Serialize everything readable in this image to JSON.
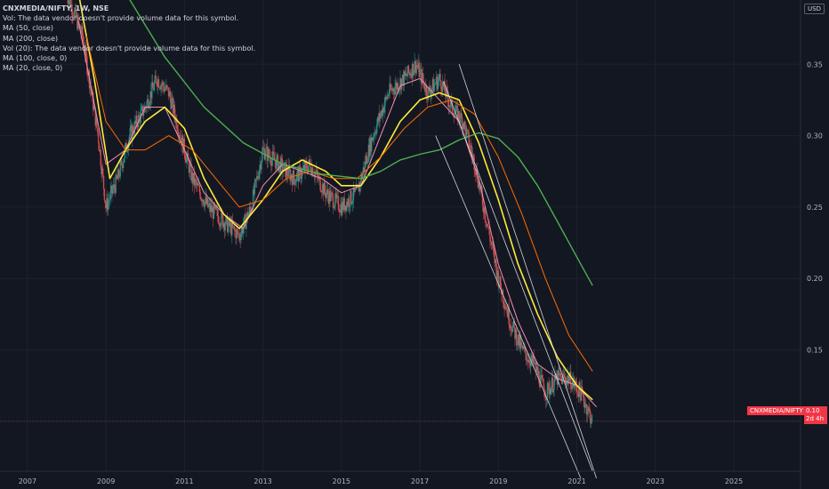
{
  "legend": {
    "symbol": "CNXMEDIA/NIFTY, 1W, NSE",
    "vol_note": "Vol: The data vendor doesn't provide volume data for this symbol.",
    "ma50": "MA (50, close)",
    "ma200": "MA (200, close)",
    "vol20_note": "Vol (20): The data vendor doesn't provide volume data for this symbol.",
    "ma100": "MA (100, close, 0)",
    "ma20": "MA (20, close, 0)"
  },
  "currency_badge": "USD",
  "price_tag": {
    "label": "CNXMEDIA/NIFTY",
    "value": "0.10",
    "countdown": "2d 4h"
  },
  "colors": {
    "background": "#131722",
    "candle_up": "#26a69a",
    "candle_down": "#ef5350",
    "ma20": "#f48fb1",
    "ma50": "#ffeb3b",
    "ma100": "#ff6d00",
    "ma200": "#4caf50",
    "channel": "#d1d4dc",
    "price_tag": "#f23645"
  },
  "chart_data": {
    "type": "candlestick",
    "timeframe": "1W",
    "x_ticks": [
      "2007",
      "2009",
      "2011",
      "2013",
      "2015",
      "2017",
      "2019",
      "2021",
      "2023",
      "2025"
    ],
    "y_ticks": [
      "0.10",
      "0.15",
      "0.20",
      "0.25",
      "0.30",
      "0.35"
    ],
    "ylim": [
      0.065,
      0.395
    ],
    "xlim": [
      2006.3,
      2026.7
    ],
    "price_path": [
      [
        2008.0,
        0.4
      ],
      [
        2008.4,
        0.37
      ],
      [
        2008.8,
        0.3
      ],
      [
        2009.0,
        0.25
      ],
      [
        2009.3,
        0.27
      ],
      [
        2009.6,
        0.3
      ],
      [
        2010.0,
        0.32
      ],
      [
        2010.3,
        0.34
      ],
      [
        2010.6,
        0.33
      ],
      [
        2010.9,
        0.3
      ],
      [
        2011.2,
        0.27
      ],
      [
        2011.6,
        0.25
      ],
      [
        2012.0,
        0.24
      ],
      [
        2012.4,
        0.23
      ],
      [
        2012.7,
        0.25
      ],
      [
        2013.0,
        0.29
      ],
      [
        2013.4,
        0.28
      ],
      [
        2013.8,
        0.27
      ],
      [
        2014.2,
        0.28
      ],
      [
        2014.6,
        0.26
      ],
      [
        2015.0,
        0.25
      ],
      [
        2015.4,
        0.26
      ],
      [
        2015.8,
        0.3
      ],
      [
        2016.2,
        0.33
      ],
      [
        2016.6,
        0.34
      ],
      [
        2016.9,
        0.35
      ],
      [
        2017.2,
        0.33
      ],
      [
        2017.5,
        0.34
      ],
      [
        2017.8,
        0.32
      ],
      [
        2018.1,
        0.31
      ],
      [
        2018.4,
        0.28
      ],
      [
        2018.7,
        0.24
      ],
      [
        2019.0,
        0.2
      ],
      [
        2019.3,
        0.17
      ],
      [
        2019.6,
        0.15
      ],
      [
        2019.9,
        0.14
      ],
      [
        2020.2,
        0.12
      ],
      [
        2020.5,
        0.13
      ],
      [
        2020.8,
        0.13
      ],
      [
        2021.1,
        0.12
      ],
      [
        2021.4,
        0.1
      ]
    ],
    "series": [
      {
        "name": "MA (20, close, 0)",
        "points": [
          [
            2008.3,
            0.38
          ],
          [
            2009.0,
            0.28
          ],
          [
            2009.5,
            0.29
          ],
          [
            2010.0,
            0.32
          ],
          [
            2010.5,
            0.32
          ],
          [
            2011.0,
            0.29
          ],
          [
            2011.5,
            0.26
          ],
          [
            2012.0,
            0.245
          ],
          [
            2012.5,
            0.235
          ],
          [
            2013.0,
            0.265
          ],
          [
            2013.5,
            0.28
          ],
          [
            2014.0,
            0.275
          ],
          [
            2014.5,
            0.27
          ],
          [
            2015.0,
            0.26
          ],
          [
            2015.5,
            0.265
          ],
          [
            2016.0,
            0.3
          ],
          [
            2016.5,
            0.335
          ],
          [
            2017.0,
            0.34
          ],
          [
            2017.5,
            0.325
          ],
          [
            2018.0,
            0.31
          ],
          [
            2018.5,
            0.27
          ],
          [
            2019.0,
            0.21
          ],
          [
            2019.5,
            0.17
          ],
          [
            2020.0,
            0.14
          ],
          [
            2020.5,
            0.13
          ],
          [
            2021.0,
            0.125
          ],
          [
            2021.5,
            0.11
          ]
        ]
      },
      {
        "name": "MA (50, close)",
        "points": [
          [
            2008.3,
            0.4
          ],
          [
            2008.7,
            0.34
          ],
          [
            2009.1,
            0.27
          ],
          [
            2009.5,
            0.29
          ],
          [
            2010.0,
            0.31
          ],
          [
            2010.5,
            0.32
          ],
          [
            2011.0,
            0.305
          ],
          [
            2011.5,
            0.27
          ],
          [
            2012.0,
            0.245
          ],
          [
            2012.4,
            0.235
          ],
          [
            2013.0,
            0.255
          ],
          [
            2013.5,
            0.275
          ],
          [
            2014.0,
            0.283
          ],
          [
            2014.6,
            0.275
          ],
          [
            2015.0,
            0.265
          ],
          [
            2015.5,
            0.265
          ],
          [
            2016.0,
            0.285
          ],
          [
            2016.5,
            0.31
          ],
          [
            2017.0,
            0.325
          ],
          [
            2017.5,
            0.33
          ],
          [
            2018.0,
            0.325
          ],
          [
            2018.5,
            0.295
          ],
          [
            2019.0,
            0.255
          ],
          [
            2019.5,
            0.21
          ],
          [
            2020.0,
            0.175
          ],
          [
            2020.5,
            0.145
          ],
          [
            2021.0,
            0.125
          ],
          [
            2021.4,
            0.115
          ]
        ]
      },
      {
        "name": "MA (100, close, 0)",
        "points": [
          [
            2008.5,
            0.37
          ],
          [
            2009.0,
            0.31
          ],
          [
            2009.5,
            0.29
          ],
          [
            2010.0,
            0.29
          ],
          [
            2010.6,
            0.3
          ],
          [
            2011.2,
            0.29
          ],
          [
            2011.8,
            0.27
          ],
          [
            2012.4,
            0.25
          ],
          [
            2013.0,
            0.255
          ],
          [
            2013.6,
            0.27
          ],
          [
            2014.2,
            0.275
          ],
          [
            2014.8,
            0.27
          ],
          [
            2015.4,
            0.27
          ],
          [
            2016.0,
            0.285
          ],
          [
            2016.6,
            0.305
          ],
          [
            2017.2,
            0.32
          ],
          [
            2017.8,
            0.325
          ],
          [
            2018.4,
            0.315
          ],
          [
            2019.0,
            0.285
          ],
          [
            2019.6,
            0.245
          ],
          [
            2020.2,
            0.2
          ],
          [
            2020.8,
            0.16
          ],
          [
            2021.4,
            0.135
          ]
        ]
      },
      {
        "name": "MA (200, close)",
        "points": [
          [
            2009.5,
            0.4
          ],
          [
            2010.5,
            0.355
          ],
          [
            2011.5,
            0.32
          ],
          [
            2012.5,
            0.295
          ],
          [
            2013.5,
            0.28
          ],
          [
            2014.5,
            0.273
          ],
          [
            2015.5,
            0.27
          ],
          [
            2016.0,
            0.275
          ],
          [
            2016.5,
            0.283
          ],
          [
            2017.0,
            0.287
          ],
          [
            2017.5,
            0.29
          ],
          [
            2018.0,
            0.297
          ],
          [
            2018.5,
            0.302
          ],
          [
            2019.0,
            0.298
          ],
          [
            2019.5,
            0.285
          ],
          [
            2020.0,
            0.265
          ],
          [
            2020.5,
            0.24
          ],
          [
            2021.0,
            0.215
          ],
          [
            2021.4,
            0.195
          ]
        ]
      }
    ],
    "trendlines": [
      [
        [
          2018.0,
          0.35
        ],
        [
          2021.5,
          0.06
        ]
      ],
      [
        [
          2017.6,
          0.338
        ],
        [
          2021.4,
          0.065
        ]
      ],
      [
        [
          2017.4,
          0.3
        ],
        [
          2021.1,
          0.06
        ]
      ]
    ],
    "last_value": 0.1
  }
}
